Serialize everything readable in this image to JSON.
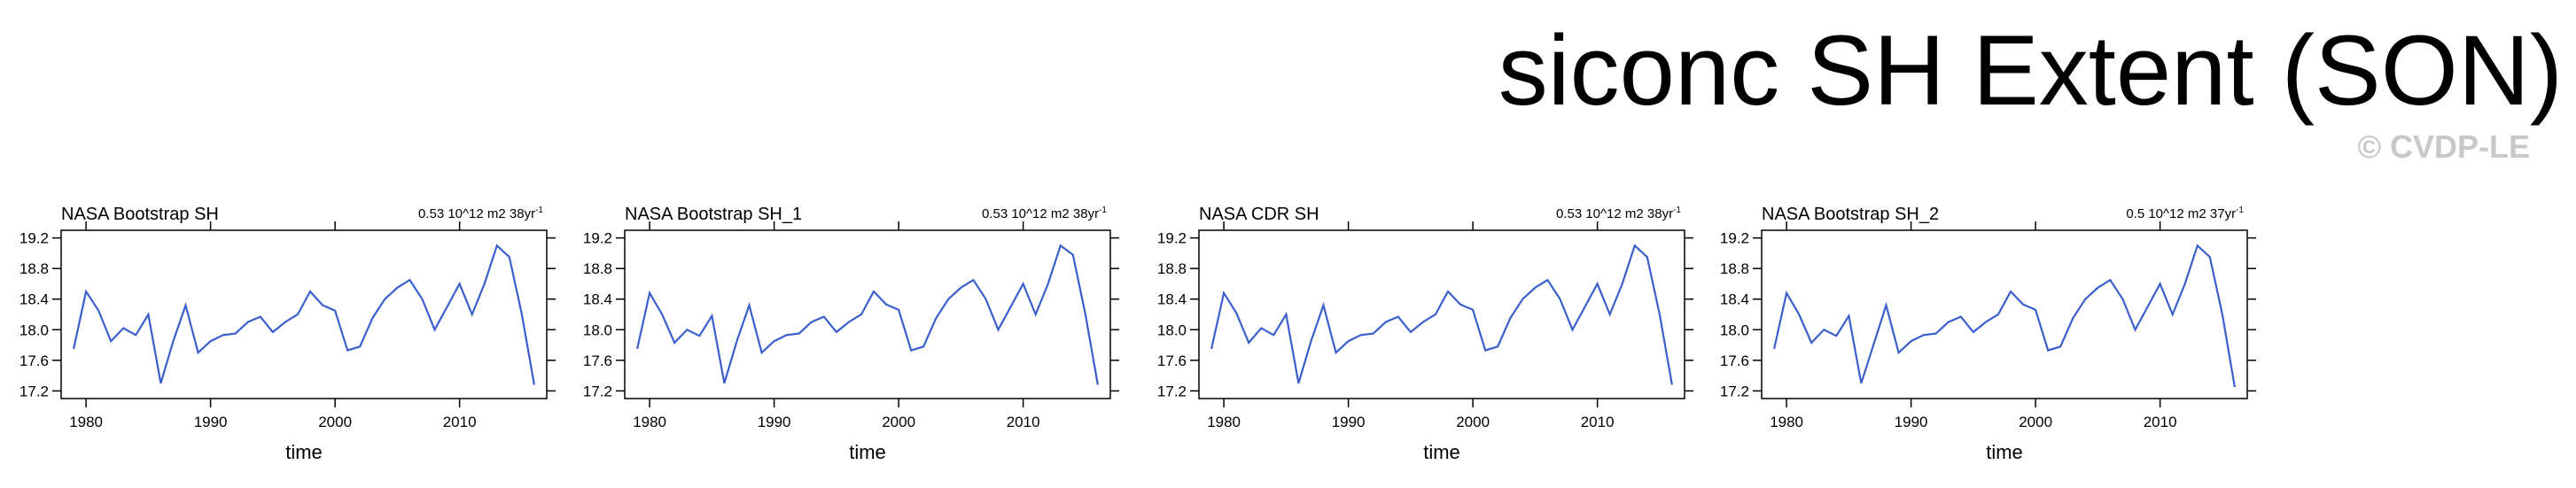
{
  "title": "siconc SH Extent (SON)",
  "watermark": "© CVDP-LE",
  "chart_data": [
    {
      "type": "line",
      "title": "NASA Bootstrap SH",
      "subtitle": "0.53 10^12 m2 38yr",
      "subtitle_sup": "-1",
      "xlabel": "time",
      "color": "#3a5fcd",
      "x": [
        1979,
        1980,
        1981,
        1982,
        1983,
        1984,
        1985,
        1986,
        1987,
        1988,
        1989,
        1990,
        1991,
        1992,
        1993,
        1994,
        1995,
        1996,
        1997,
        1998,
        1999,
        2000,
        2001,
        2002,
        2003,
        2004,
        2005,
        2006,
        2007,
        2008,
        2009,
        2010,
        2011,
        2012,
        2013,
        2014,
        2015,
        2016
      ],
      "values": [
        17.75,
        18.5,
        18.25,
        17.85,
        18.02,
        17.93,
        18.2,
        17.3,
        17.85,
        18.32,
        17.7,
        17.85,
        17.93,
        17.95,
        18.1,
        18.17,
        17.97,
        18.1,
        18.2,
        18.5,
        18.32,
        18.25,
        17.73,
        17.78,
        18.15,
        18.4,
        18.55,
        18.65,
        18.4,
        18.0,
        18.3,
        18.6,
        18.2,
        18.6,
        19.1,
        18.95,
        18.2,
        17.28
      ],
      "xlim": [
        1978,
        2017
      ],
      "ylim": [
        17.1,
        19.3
      ],
      "xticks": [
        1980,
        1990,
        2000,
        2010
      ],
      "yticks": [
        17.2,
        17.6,
        {
          "value": 18,
          "label": "18.0"
        },
        18.4,
        18.8,
        19.2
      ]
    },
    {
      "type": "line",
      "title": "NASA Bootstrap SH_1",
      "subtitle": "0.53 10^12 m2 38yr",
      "subtitle_sup": "-1",
      "xlabel": "time",
      "color": "#3a5fcd",
      "x": [
        1979,
        1980,
        1981,
        1982,
        1983,
        1984,
        1985,
        1986,
        1987,
        1988,
        1989,
        1990,
        1991,
        1992,
        1993,
        1994,
        1995,
        1996,
        1997,
        1998,
        1999,
        2000,
        2001,
        2002,
        2003,
        2004,
        2005,
        2006,
        2007,
        2008,
        2009,
        2010,
        2011,
        2012,
        2013,
        2014,
        2015,
        2016
      ],
      "values": [
        17.75,
        18.48,
        18.2,
        17.83,
        18.0,
        17.92,
        18.18,
        17.3,
        17.85,
        18.32,
        17.7,
        17.85,
        17.93,
        17.95,
        18.1,
        18.17,
        17.97,
        18.1,
        18.2,
        18.5,
        18.33,
        18.26,
        17.73,
        17.78,
        18.15,
        18.4,
        18.55,
        18.65,
        18.4,
        18.0,
        18.3,
        18.6,
        18.2,
        18.6,
        19.1,
        18.98,
        18.2,
        17.28
      ],
      "xlim": [
        1978,
        2017
      ],
      "ylim": [
        17.1,
        19.3
      ],
      "xticks": [
        1980,
        1990,
        2000,
        2010
      ],
      "yticks": [
        17.2,
        17.6,
        {
          "value": 18,
          "label": "18.0"
        },
        18.4,
        18.8,
        19.2
      ]
    },
    {
      "type": "line",
      "title": "NASA CDR SH",
      "subtitle": "0.53 10^12 m2 38yr",
      "subtitle_sup": "-1",
      "xlabel": "time",
      "color": "#3a5fcd",
      "x": [
        1979,
        1980,
        1981,
        1982,
        1983,
        1984,
        1985,
        1986,
        1987,
        1988,
        1989,
        1990,
        1991,
        1992,
        1993,
        1994,
        1995,
        1996,
        1997,
        1998,
        1999,
        2000,
        2001,
        2002,
        2003,
        2004,
        2005,
        2006,
        2007,
        2008,
        2009,
        2010,
        2011,
        2012,
        2013,
        2014,
        2015,
        2016
      ],
      "values": [
        17.75,
        18.48,
        18.22,
        17.83,
        18.02,
        17.93,
        18.2,
        17.3,
        17.85,
        18.32,
        17.7,
        17.85,
        17.93,
        17.95,
        18.1,
        18.17,
        17.97,
        18.1,
        18.2,
        18.5,
        18.33,
        18.26,
        17.73,
        17.78,
        18.15,
        18.4,
        18.55,
        18.65,
        18.4,
        18.0,
        18.3,
        18.6,
        18.2,
        18.6,
        19.1,
        18.95,
        18.2,
        17.28
      ],
      "xlim": [
        1978,
        2017
      ],
      "ylim": [
        17.1,
        19.3
      ],
      "xticks": [
        1980,
        1990,
        2000,
        2010
      ],
      "yticks": [
        17.2,
        17.6,
        {
          "value": 18,
          "label": "18.0"
        },
        18.4,
        18.8,
        19.2
      ]
    },
    {
      "type": "line",
      "title": "NASA Bootstrap SH_2",
      "subtitle": "0.5 10^12 m2 37yr",
      "subtitle_sup": "-1",
      "xlabel": "time",
      "color": "#3a5fcd",
      "x": [
        1979,
        1980,
        1981,
        1982,
        1983,
        1984,
        1985,
        1986,
        1988,
        1989,
        1990,
        1991,
        1992,
        1993,
        1994,
        1995,
        1996,
        1997,
        1998,
        1999,
        2000,
        2001,
        2002,
        2003,
        2004,
        2005,
        2006,
        2007,
        2008,
        2009,
        2010,
        2011,
        2012,
        2013,
        2014,
        2015,
        2016
      ],
      "values": [
        17.75,
        18.48,
        18.2,
        17.83,
        18.0,
        17.92,
        18.18,
        17.3,
        18.32,
        17.7,
        17.85,
        17.93,
        17.95,
        18.1,
        18.17,
        17.97,
        18.1,
        18.2,
        18.5,
        18.33,
        18.26,
        17.73,
        17.78,
        18.15,
        18.4,
        18.55,
        18.65,
        18.4,
        18.0,
        18.3,
        18.6,
        18.2,
        18.6,
        19.1,
        18.95,
        18.2,
        17.25
      ],
      "xlim": [
        1978,
        2017
      ],
      "ylim": [
        17.1,
        19.3
      ],
      "xticks": [
        1980,
        1990,
        2000,
        2010
      ],
      "yticks": [
        17.2,
        17.6,
        {
          "value": 18,
          "label": "18.0"
        },
        18.4,
        18.8,
        19.2
      ]
    }
  ]
}
